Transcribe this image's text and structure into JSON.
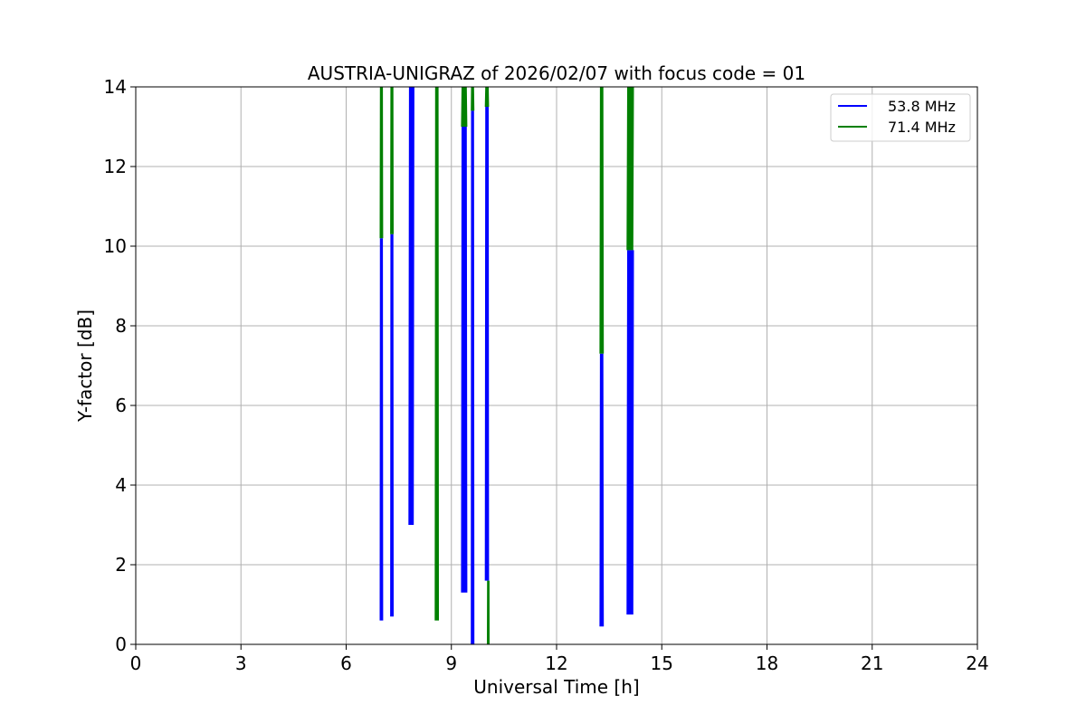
{
  "chart_data": {
    "type": "line",
    "title": "AUSTRIA-UNIGRAZ of 2026/02/07 with focus code = 01",
    "xlabel": "Universal Time [h]",
    "ylabel": "Y-factor [dB]",
    "xlim": [
      0,
      24
    ],
    "ylim": [
      0,
      14
    ],
    "xticks": [
      0,
      3,
      6,
      9,
      12,
      15,
      18,
      21,
      24
    ],
    "yticks": [
      0,
      2,
      4,
      6,
      8,
      10,
      12,
      14
    ],
    "grid": true,
    "legend_position": "top-right",
    "series": [
      {
        "name": "53.8 MHz",
        "color": "#0000ff",
        "bursts": [
          {
            "t_start": 6.98,
            "t_end": 7.03,
            "y_min": 0.6,
            "y_max": 10.2
          },
          {
            "t_start": 7.28,
            "t_end": 7.33,
            "y_min": 0.7,
            "y_max": 10.3
          },
          {
            "t_start": 7.8,
            "t_end": 7.92,
            "y_min": 3.0,
            "y_max": 14.0
          },
          {
            "t_start": 9.3,
            "t_end": 9.43,
            "y_min": 1.3,
            "y_max": 13.0
          },
          {
            "t_start": 9.58,
            "t_end": 9.63,
            "y_min": 0.0,
            "y_max": 13.4
          },
          {
            "t_start": 9.98,
            "t_end": 10.05,
            "y_min": 1.6,
            "y_max": 13.5
          },
          {
            "t_start": 13.25,
            "t_end": 13.32,
            "y_min": 0.45,
            "y_max": 7.3
          },
          {
            "t_start": 14.02,
            "t_end": 14.18,
            "y_min": 0.75,
            "y_max": 9.9
          }
        ]
      },
      {
        "name": "71.4 MHz",
        "color": "#008000",
        "bursts": [
          {
            "t_start": 6.98,
            "t_end": 7.03,
            "y_min": 10.2,
            "y_max": 14.0
          },
          {
            "t_start": 7.28,
            "t_end": 7.33,
            "y_min": 10.3,
            "y_max": 14.0
          },
          {
            "t_start": 8.55,
            "t_end": 8.62,
            "y_min": 0.6,
            "y_max": 14.0
          },
          {
            "t_start": 9.3,
            "t_end": 9.43,
            "y_min": 13.0,
            "y_max": 14.0
          },
          {
            "t_start": 9.58,
            "t_end": 9.63,
            "y_min": 13.4,
            "y_max": 14.0
          },
          {
            "t_start": 9.98,
            "t_end": 10.05,
            "y_min": 13.5,
            "y_max": 14.0
          },
          {
            "t_start": 10.04,
            "t_end": 10.06,
            "y_min": 0.0,
            "y_max": 1.6
          },
          {
            "t_start": 13.25,
            "t_end": 13.32,
            "y_min": 7.3,
            "y_max": 14.0
          },
          {
            "t_start": 14.02,
            "t_end": 14.18,
            "y_min": 9.9,
            "y_max": 14.0
          }
        ]
      }
    ]
  }
}
